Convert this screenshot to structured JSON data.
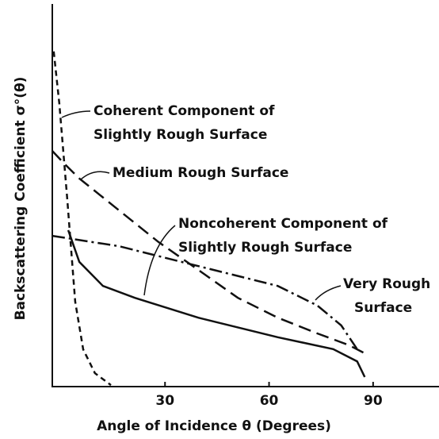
{
  "chart_data": {
    "type": "line",
    "xlabel": "Angle of Incidence θ (Degrees)",
    "ylabel": "Backscattering Coefficient σ°(θ)",
    "xlim": [
      -2.5,
      109
    ],
    "xticks": [
      30,
      60,
      90
    ],
    "ylim": [
      0,
      100
    ],
    "grid": false,
    "series": [
      {
        "color": "#111111",
        "dash": "7 5",
        "x": [
          -2.1,
          -0.5,
          1.8,
          4.1,
          6.4,
          9.8,
          14.4
        ],
        "values": [
          87.6,
          74.1,
          49.2,
          22.2,
          9.7,
          3.5,
          0.4
        ]
      },
      {
        "color": "#111111",
        "dash": "16 8",
        "x": [
          -2.5,
          0.7,
          5.3,
          16.7,
          28.1,
          39.6,
          51,
          62.5,
          73.9,
          83.1,
          87.6
        ],
        "values": [
          61.6,
          58.5,
          54.4,
          46.1,
          37.8,
          30.5,
          23.2,
          18,
          13.9,
          10.8,
          8.7
        ]
      },
      {
        "color": "#111111",
        "dash": "none",
        "x": [
          2.1,
          5.3,
          12.1,
          21.3,
          39.6,
          62.5,
          78.5,
          85.4,
          87.6
        ],
        "values": [
          40.9,
          32.6,
          26.3,
          23.2,
          18,
          12.9,
          9.8,
          6.6,
          2.5
        ]
      },
      {
        "color": "#111111",
        "dash": "16 5 3 5",
        "x": [
          -2.5,
          16.7,
          39.6,
          62.5,
          73.9,
          80.8,
          85.4
        ],
        "values": [
          39.4,
          36.7,
          31.5,
          26.3,
          21.2,
          16,
          9.8
        ]
      }
    ],
    "annotations": [
      {
        "lines": [
          "Coherent Component of",
          "Slightly Rough Surface"
        ]
      },
      {
        "lines": [
          "Medium Rough Surface"
        ]
      },
      {
        "lines": [
          "Noncoherent Component of",
          "Slightly Rough Surface"
        ]
      },
      {
        "lines": [
          "Very Rough",
          "Surface"
        ]
      }
    ]
  }
}
